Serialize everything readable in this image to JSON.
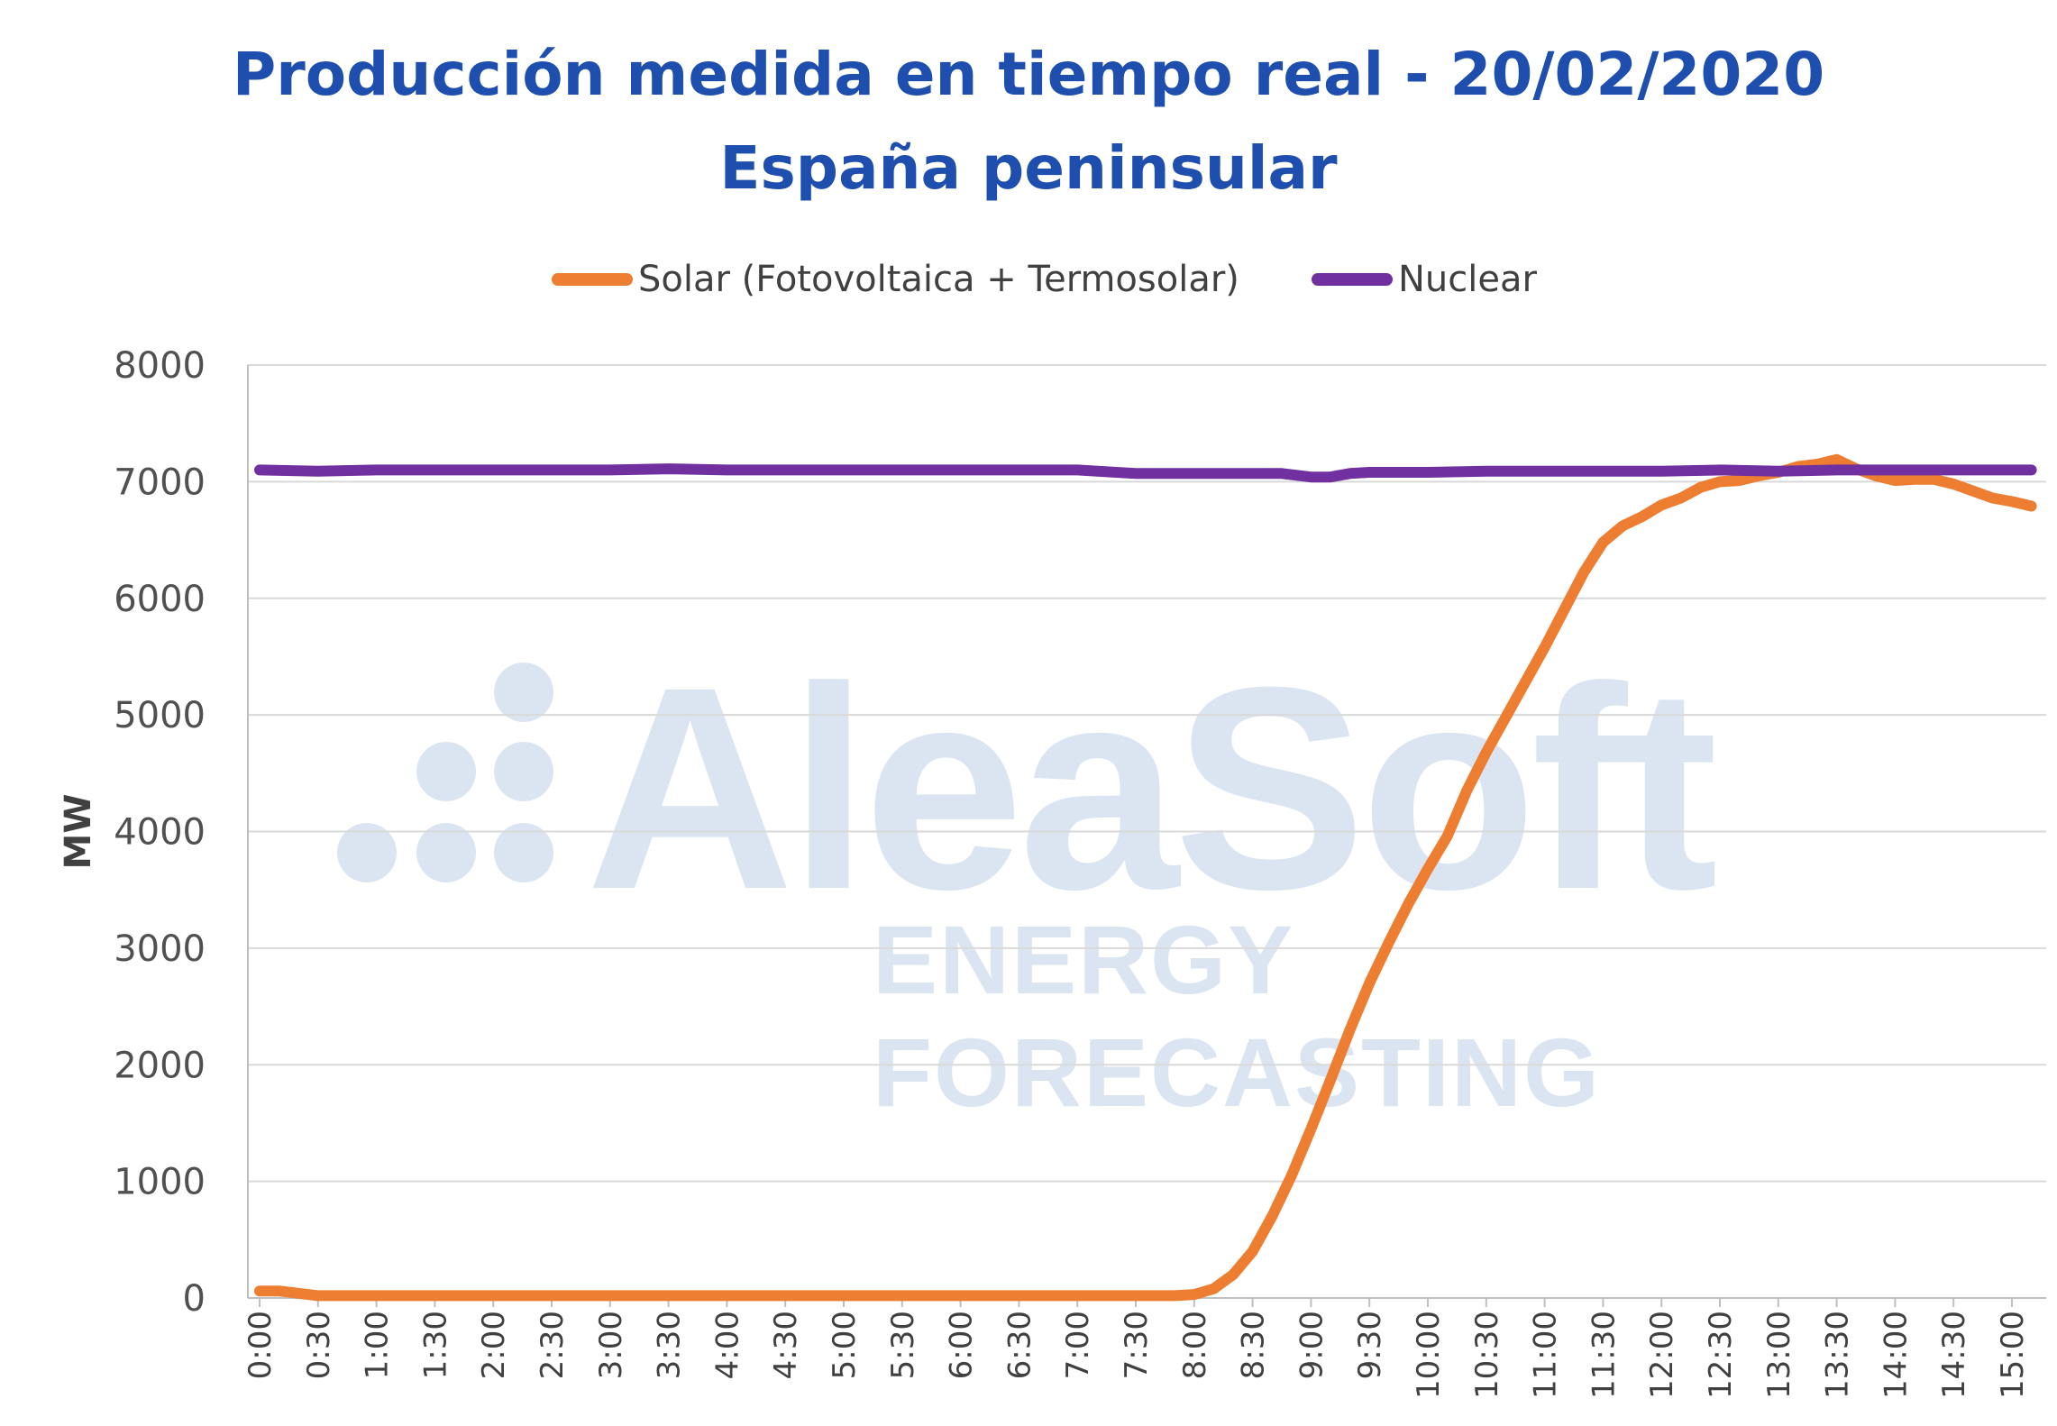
{
  "chart_data": {
    "type": "line",
    "title": "Producción medida en tiempo real - 20/02/2020",
    "subtitle": "España peninsular",
    "ylabel": "MW",
    "xlabel": "",
    "ylim": [
      0,
      8000
    ],
    "yticks": [
      0,
      1000,
      2000,
      3000,
      4000,
      5000,
      6000,
      7000,
      8000
    ],
    "xticks": [
      "0:00",
      "0:30",
      "1:00",
      "1:30",
      "2:00",
      "2:30",
      "3:00",
      "3:30",
      "4:00",
      "4:30",
      "5:00",
      "5:30",
      "6:00",
      "6:30",
      "7:00",
      "7:30",
      "8:00",
      "8:30",
      "9:00",
      "9:30",
      "10:00",
      "10:30",
      "11:00",
      "11:30",
      "12:00",
      "12:30",
      "13:00",
      "13:30",
      "14:00",
      "14:30",
      "15:00"
    ],
    "grid": true,
    "legend_position": "top",
    "series": [
      {
        "name": "Solar (Fotovoltaica + Termosolar)",
        "color": "#ed7d31",
        "points": [
          [
            "0:00",
            60
          ],
          [
            "0:10",
            60
          ],
          [
            "0:20",
            40
          ],
          [
            "0:30",
            20
          ],
          [
            "0:40",
            20
          ],
          [
            "1:00",
            20
          ],
          [
            "2:00",
            20
          ],
          [
            "3:00",
            20
          ],
          [
            "4:00",
            20
          ],
          [
            "5:00",
            20
          ],
          [
            "6:00",
            20
          ],
          [
            "7:00",
            20
          ],
          [
            "7:50",
            20
          ],
          [
            "8:00",
            30
          ],
          [
            "8:10",
            80
          ],
          [
            "8:20",
            200
          ],
          [
            "8:30",
            400
          ],
          [
            "8:40",
            700
          ],
          [
            "8:50",
            1050
          ],
          [
            "9:00",
            1450
          ],
          [
            "9:10",
            1870
          ],
          [
            "9:20",
            2300
          ],
          [
            "9:30",
            2700
          ],
          [
            "9:40",
            3050
          ],
          [
            "9:50",
            3380
          ],
          [
            "10:00",
            3680
          ],
          [
            "10:10",
            3960
          ],
          [
            "10:20",
            4350
          ],
          [
            "10:30",
            4680
          ],
          [
            "10:40",
            4980
          ],
          [
            "10:50",
            5280
          ],
          [
            "11:00",
            5580
          ],
          [
            "11:10",
            5900
          ],
          [
            "11:20",
            6220
          ],
          [
            "11:30",
            6480
          ],
          [
            "11:40",
            6620
          ],
          [
            "11:50",
            6700
          ],
          [
            "12:00",
            6800
          ],
          [
            "12:10",
            6860
          ],
          [
            "12:20",
            6950
          ],
          [
            "12:30",
            7000
          ],
          [
            "12:40",
            7010
          ],
          [
            "12:50",
            7050
          ],
          [
            "13:00",
            7080
          ],
          [
            "13:10",
            7130
          ],
          [
            "13:20",
            7150
          ],
          [
            "13:30",
            7190
          ],
          [
            "13:40",
            7110
          ],
          [
            "13:50",
            7050
          ],
          [
            "14:00",
            7010
          ],
          [
            "14:10",
            7020
          ],
          [
            "14:20",
            7020
          ],
          [
            "14:30",
            6980
          ],
          [
            "14:40",
            6920
          ],
          [
            "14:50",
            6860
          ],
          [
            "15:00",
            6830
          ],
          [
            "15:10",
            6790
          ]
        ]
      },
      {
        "name": "Nuclear",
        "color": "#7030a0",
        "points": [
          [
            "0:00",
            7100
          ],
          [
            "0:30",
            7090
          ],
          [
            "1:00",
            7100
          ],
          [
            "1:30",
            7100
          ],
          [
            "2:00",
            7100
          ],
          [
            "2:30",
            7100
          ],
          [
            "3:00",
            7100
          ],
          [
            "3:30",
            7110
          ],
          [
            "4:00",
            7100
          ],
          [
            "4:30",
            7100
          ],
          [
            "5:00",
            7100
          ],
          [
            "5:30",
            7100
          ],
          [
            "6:00",
            7100
          ],
          [
            "6:30",
            7100
          ],
          [
            "7:00",
            7100
          ],
          [
            "7:20",
            7080
          ],
          [
            "7:30",
            7070
          ],
          [
            "8:00",
            7070
          ],
          [
            "8:30",
            7070
          ],
          [
            "8:45",
            7070
          ],
          [
            "9:00",
            7040
          ],
          [
            "9:10",
            7040
          ],
          [
            "9:20",
            7070
          ],
          [
            "9:30",
            7080
          ],
          [
            "10:00",
            7080
          ],
          [
            "10:30",
            7090
          ],
          [
            "11:00",
            7090
          ],
          [
            "11:30",
            7090
          ],
          [
            "12:00",
            7090
          ],
          [
            "12:30",
            7100
          ],
          [
            "13:00",
            7090
          ],
          [
            "13:30",
            7100
          ],
          [
            "14:00",
            7100
          ],
          [
            "14:30",
            7100
          ],
          [
            "15:00",
            7100
          ],
          [
            "15:10",
            7100
          ]
        ]
      }
    ]
  },
  "watermark": {
    "name": "AleaSoft",
    "tagline": "ENERGY FORECASTING",
    "color": "#dbe5f2"
  }
}
